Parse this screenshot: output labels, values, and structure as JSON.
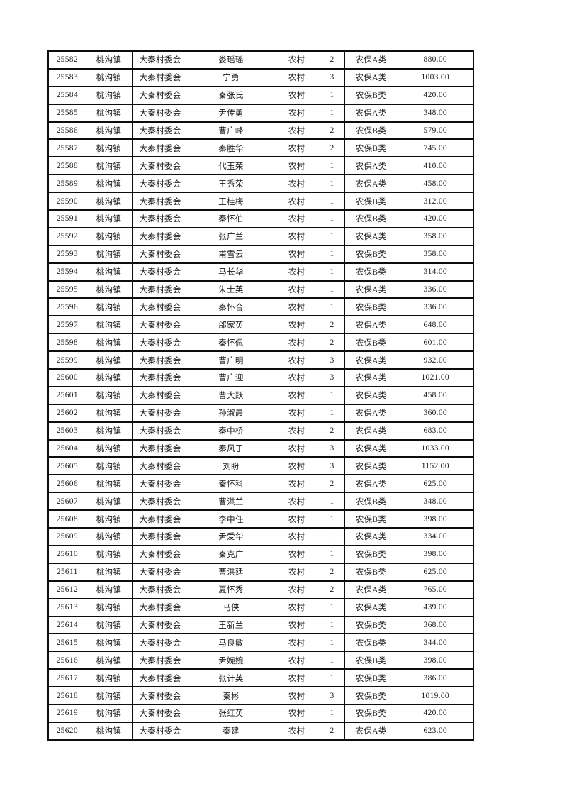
{
  "table": {
    "column_keys": [
      "record_id",
      "town",
      "village_committee",
      "person_name",
      "residence_type",
      "person_count",
      "insurance_category",
      "amount"
    ],
    "rows": [
      [
        "25582",
        "桃沟镇",
        "大秦村委会",
        "娄瑶瑶",
        "农村",
        "2",
        "农保A类",
        "880.00"
      ],
      [
        "25583",
        "桃沟镇",
        "大秦村委会",
        "宁勇",
        "农村",
        "3",
        "农保A类",
        "1003.00"
      ],
      [
        "25584",
        "桃沟镇",
        "大秦村委会",
        "秦张氏",
        "农村",
        "1",
        "农保B类",
        "420.00"
      ],
      [
        "25585",
        "桃沟镇",
        "大秦村委会",
        "尹传勇",
        "农村",
        "1",
        "农保A类",
        "348.00"
      ],
      [
        "25586",
        "桃沟镇",
        "大秦村委会",
        "曹广峰",
        "农村",
        "2",
        "农保B类",
        "579.00"
      ],
      [
        "25587",
        "桃沟镇",
        "大秦村委会",
        "秦胜华",
        "农村",
        "2",
        "农保B类",
        "745.00"
      ],
      [
        "25588",
        "桃沟镇",
        "大秦村委会",
        "代玉荣",
        "农村",
        "1",
        "农保A类",
        "410.00"
      ],
      [
        "25589",
        "桃沟镇",
        "大秦村委会",
        "王秀荣",
        "农村",
        "1",
        "农保A类",
        "458.00"
      ],
      [
        "25590",
        "桃沟镇",
        "大秦村委会",
        "王桂梅",
        "农村",
        "1",
        "农保B类",
        "312.00"
      ],
      [
        "25591",
        "桃沟镇",
        "大秦村委会",
        "秦怀伯",
        "农村",
        "1",
        "农保B类",
        "420.00"
      ],
      [
        "25592",
        "桃沟镇",
        "大秦村委会",
        "张广兰",
        "农村",
        "1",
        "农保A类",
        "358.00"
      ],
      [
        "25593",
        "桃沟镇",
        "大秦村委会",
        "甫雪云",
        "农村",
        "1",
        "农保B类",
        "358.00"
      ],
      [
        "25594",
        "桃沟镇",
        "大秦村委会",
        "马长华",
        "农村",
        "1",
        "农保B类",
        "314.00"
      ],
      [
        "25595",
        "桃沟镇",
        "大秦村委会",
        "朱士英",
        "农村",
        "1",
        "农保A类",
        "336.00"
      ],
      [
        "25596",
        "桃沟镇",
        "大秦村委会",
        "秦怀合",
        "农村",
        "1",
        "农保B类",
        "336.00"
      ],
      [
        "25597",
        "桃沟镇",
        "大秦村委会",
        "邰家英",
        "农村",
        "2",
        "农保A类",
        "648.00"
      ],
      [
        "25598",
        "桃沟镇",
        "大秦村委会",
        "秦怀佩",
        "农村",
        "2",
        "农保B类",
        "601.00"
      ],
      [
        "25599",
        "桃沟镇",
        "大秦村委会",
        "曹广明",
        "农村",
        "3",
        "农保A类",
        "932.00"
      ],
      [
        "25600",
        "桃沟镇",
        "大秦村委会",
        "曹广迎",
        "农村",
        "3",
        "农保A类",
        "1021.00"
      ],
      [
        "25601",
        "桃沟镇",
        "大秦村委会",
        "曹大跃",
        "农村",
        "1",
        "农保A类",
        "458.00"
      ],
      [
        "25602",
        "桃沟镇",
        "大秦村委会",
        "孙淑晨",
        "农村",
        "1",
        "农保A类",
        "360.00"
      ],
      [
        "25603",
        "桃沟镇",
        "大秦村委会",
        "秦中桥",
        "农村",
        "2",
        "农保A类",
        "683.00"
      ],
      [
        "25604",
        "桃沟镇",
        "大秦村委会",
        "秦风于",
        "农村",
        "3",
        "农保A类",
        "1033.00"
      ],
      [
        "25605",
        "桃沟镇",
        "大秦村委会",
        "刘盼",
        "农村",
        "3",
        "农保A类",
        "1152.00"
      ],
      [
        "25606",
        "桃沟镇",
        "大秦村委会",
        "秦怀科",
        "农村",
        "2",
        "农保A类",
        "625.00"
      ],
      [
        "25607",
        "桃沟镇",
        "大秦村委会",
        "曹洪兰",
        "农村",
        "1",
        "农保B类",
        "348.00"
      ],
      [
        "25608",
        "桃沟镇",
        "大秦村委会",
        "李中任",
        "农村",
        "1",
        "农保B类",
        "398.00"
      ],
      [
        "25609",
        "桃沟镇",
        "大秦村委会",
        "尹爱华",
        "农村",
        "1",
        "农保A类",
        "334.00"
      ],
      [
        "25610",
        "桃沟镇",
        "大秦村委会",
        "秦克广",
        "农村",
        "1",
        "农保B类",
        "398.00"
      ],
      [
        "25611",
        "桃沟镇",
        "大秦村委会",
        "曹洪廷",
        "农村",
        "2",
        "农保B类",
        "625.00"
      ],
      [
        "25612",
        "桃沟镇",
        "大秦村委会",
        "夏怀秀",
        "农村",
        "2",
        "农保A类",
        "765.00"
      ],
      [
        "25613",
        "桃沟镇",
        "大秦村委会",
        "马侠",
        "农村",
        "1",
        "农保A类",
        "439.00"
      ],
      [
        "25614",
        "桃沟镇",
        "大秦村委会",
        "王新兰",
        "农村",
        "1",
        "农保B类",
        "368.00"
      ],
      [
        "25615",
        "桃沟镇",
        "大秦村委会",
        "马良敏",
        "农村",
        "1",
        "农保B类",
        "344.00"
      ],
      [
        "25616",
        "桃沟镇",
        "大秦村委会",
        "尹婉婉",
        "农村",
        "1",
        "农保B类",
        "398.00"
      ],
      [
        "25617",
        "桃沟镇",
        "大秦村委会",
        "张计英",
        "农村",
        "1",
        "农保B类",
        "386.00"
      ],
      [
        "25618",
        "桃沟镇",
        "大秦村委会",
        "秦彬",
        "农村",
        "3",
        "农保B类",
        "1019.00"
      ],
      [
        "25619",
        "桃沟镇",
        "大秦村委会",
        "张红英",
        "农村",
        "1",
        "农保B类",
        "420.00"
      ],
      [
        "25620",
        "桃沟镇",
        "大秦村委会",
        "秦建",
        "农村",
        "2",
        "农保A类",
        "623.00"
      ]
    ]
  }
}
